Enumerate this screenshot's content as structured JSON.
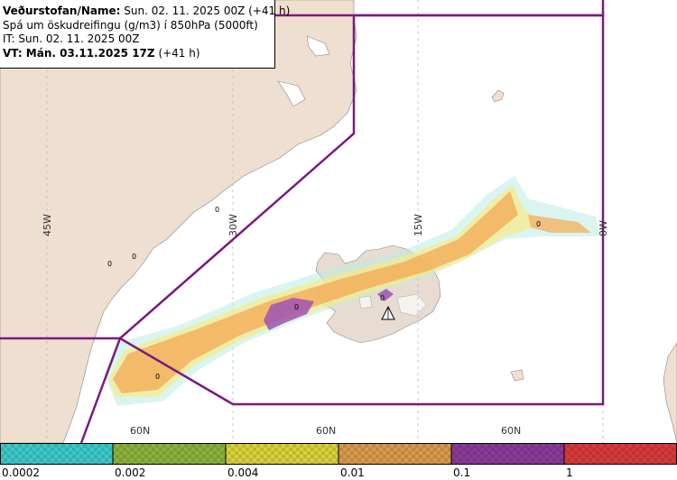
{
  "header": {
    "line1_label": "Veðurstofan/Name:",
    "line1_value": "Sun. 02. 11. 2025 00Z (+41 h)",
    "line2": "Spá um öskudreifingu (g/m3) í 850hPa (5000ft)",
    "line3": "IT: Sun. 02. 11. 2025 00Z",
    "line4_label": "VT: Mán. 03.11.2025 17Z",
    "line4_value": "(+41 h)"
  },
  "map": {
    "longitude_labels": [
      "45W",
      "30W",
      "15W",
      "0W"
    ],
    "latitude_labels": [
      "60N",
      "60N",
      "60N"
    ],
    "contour_zero_labels": [
      "0",
      "0",
      "0",
      "0",
      "0",
      "0",
      "0"
    ],
    "colors": {
      "land": "#efdfd0",
      "iceland_land": "#e8dcd2",
      "sea": "#ffffff",
      "fir_boundary": "#7a1a7e",
      "grid": "#bbbbbb"
    }
  },
  "legend": {
    "labels": [
      "0.0002",
      "0.002",
      "0.004",
      "0.01",
      "0.1",
      "1"
    ],
    "colors": [
      "#3cc8c8",
      "#8ab23a",
      "#d8d23a",
      "#d89a4a",
      "#8a3a98",
      "#d83a3a"
    ]
  }
}
